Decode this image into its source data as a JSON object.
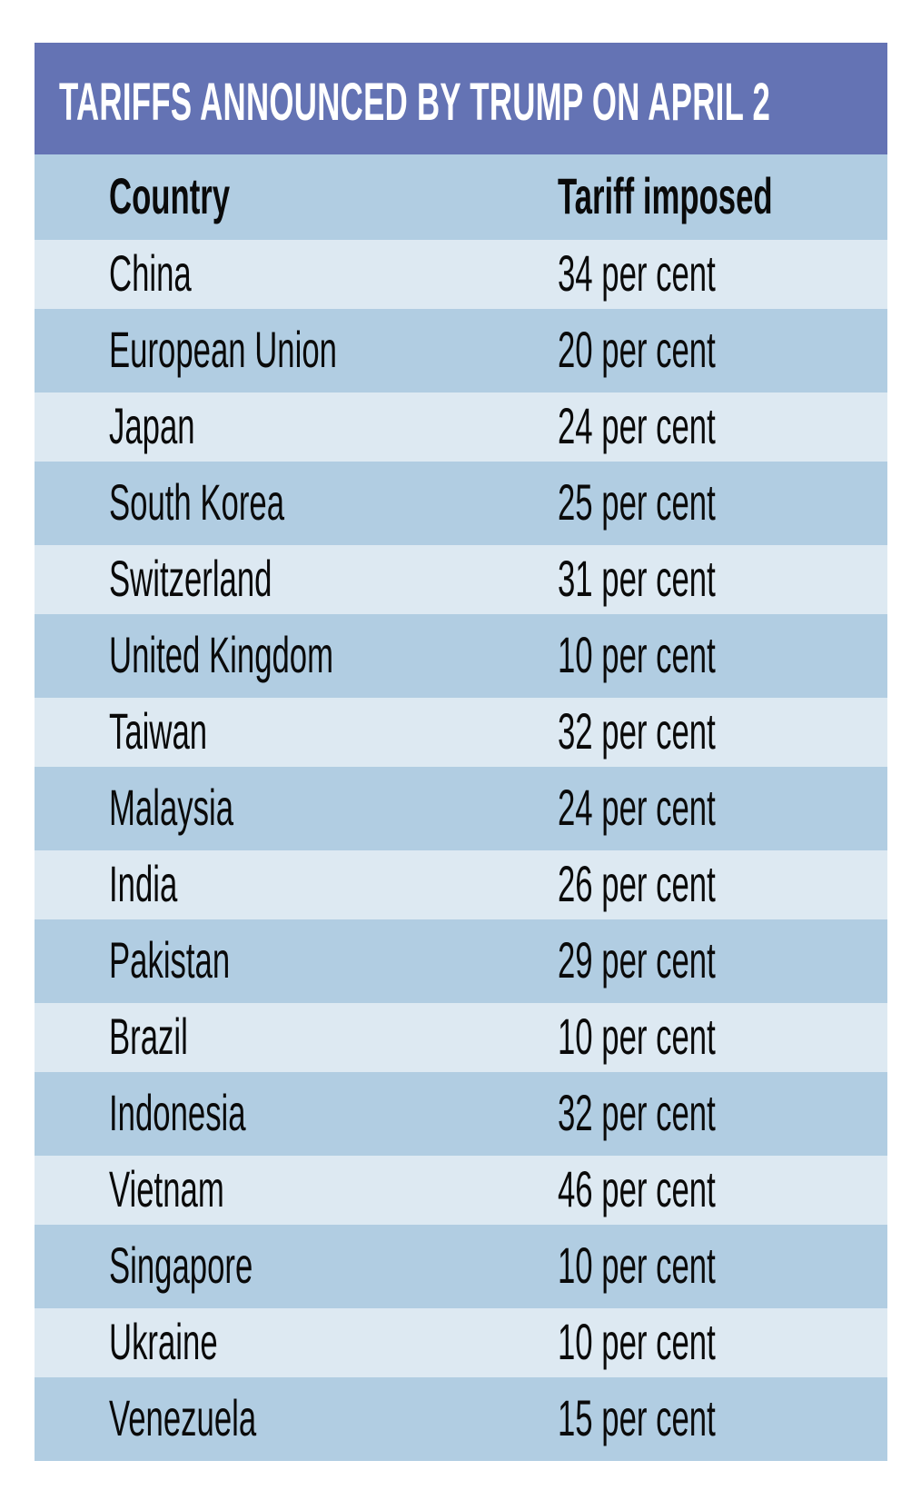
{
  "title": "TARIFFS ANNOUNCED BY TRUMP ON APRIL 2",
  "columns": [
    "Country",
    "Tariff imposed"
  ],
  "rows": [
    {
      "country": "China",
      "tariff": "34 per cent"
    },
    {
      "country": "European Union",
      "tariff": "20 per cent"
    },
    {
      "country": "Japan",
      "tariff": "24 per cent"
    },
    {
      "country": "South Korea",
      "tariff": "25 per cent"
    },
    {
      "country": "Switzerland",
      "tariff": "31 per cent"
    },
    {
      "country": "United Kingdom",
      "tariff": "10 per cent"
    },
    {
      "country": "Taiwan",
      "tariff": "32 per cent"
    },
    {
      "country": "Malaysia",
      "tariff": "24 per cent"
    },
    {
      "country": "India",
      "tariff": "26 per cent"
    },
    {
      "country": "Pakistan",
      "tariff": "29 per cent"
    },
    {
      "country": "Brazil",
      "tariff": "10 per cent"
    },
    {
      "country": "Indonesia",
      "tariff": "32 per cent"
    },
    {
      "country": "Vietnam",
      "tariff": "46 per cent"
    },
    {
      "country": "Singapore",
      "tariff": "10 per cent"
    },
    {
      "country": "Ukraine",
      "tariff": "10 per cent"
    },
    {
      "country": "Venezuela",
      "tariff": "15 per cent"
    }
  ],
  "colors": {
    "title_bg": "#6473b4",
    "row_dark": "#b1cde2",
    "row_light": "#dde9f2"
  }
}
